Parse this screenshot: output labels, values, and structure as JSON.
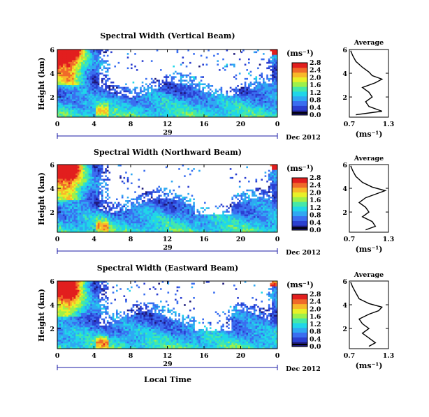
{
  "figure": {
    "xlabel": "Local Time",
    "date_label": "Dec 2012",
    "day_label": "29",
    "x_ticks": [
      "0",
      "4",
      "8",
      "12",
      "16",
      "20",
      "0"
    ],
    "y_ticks": [
      "6",
      "4",
      "2"
    ],
    "cbar_ticks": [
      "0.0",
      "0.4",
      "0.8",
      "1.2",
      "1.6",
      "2.0",
      "2.4",
      "2.8"
    ],
    "avg_y_ticks": [
      "6",
      "4",
      "2"
    ],
    "colormap": [
      "#1e1a7a",
      "#2b3fd0",
      "#3a6ef0",
      "#2fa8f2",
      "#20d6e8",
      "#45e8a8",
      "#9ef04a",
      "#e8f028",
      "#f8b82a",
      "#f06a2a",
      "#e21e1e"
    ]
  },
  "chart_data": [
    {
      "type": "heatmap",
      "title": "Spectral Width (Vertical Beam)",
      "xlabel": "",
      "ylabel": "Height (km)",
      "xlim": [
        0,
        24
      ],
      "ylim": [
        0.3,
        6
      ],
      "colorbar": {
        "label": "(ms⁻¹)",
        "range": [
          0.0,
          2.8
        ]
      },
      "average_profile": {
        "title": "Average",
        "xlabel": "(ms⁻¹)",
        "x_ticks": [
          "0.7",
          "1.3"
        ],
        "xlim": [
          0.7,
          1.3
        ],
        "ylim": [
          0.3,
          6
        ],
        "height_km": [
          0.5,
          0.8,
          1.2,
          1.6,
          2.0,
          2.4,
          2.8,
          3.2,
          3.5,
          3.8,
          4.1,
          4.5,
          5.0,
          5.5,
          5.9
        ],
        "width_ms": [
          0.8,
          1.2,
          1.0,
          0.95,
          1.05,
          1.0,
          0.9,
          1.1,
          1.2,
          1.05,
          1.0,
          0.9,
          0.8,
          0.75,
          0.72
        ]
      }
    },
    {
      "type": "heatmap",
      "title": "Spectral Width (Northward Beam)",
      "xlabel": "",
      "ylabel": "Height (km)",
      "xlim": [
        0,
        24
      ],
      "ylim": [
        0.3,
        6
      ],
      "colorbar": {
        "label": "(ms⁻¹)",
        "range": [
          0.0,
          2.8
        ]
      },
      "average_profile": {
        "title": "Average",
        "xlabel": "(ms⁻¹)",
        "x_ticks": [
          "0.7",
          "1.3"
        ],
        "xlim": [
          0.7,
          1.3
        ],
        "ylim": [
          0.3,
          6
        ],
        "height_km": [
          0.5,
          0.8,
          1.2,
          1.6,
          2.0,
          2.4,
          2.8,
          3.2,
          3.5,
          3.8,
          4.1,
          4.5,
          5.0,
          5.5,
          5.9
        ],
        "width_ms": [
          0.95,
          1.1,
          1.05,
          0.9,
          1.0,
          0.95,
          0.85,
          0.95,
          1.1,
          1.25,
          1.05,
          0.9,
          0.8,
          0.75,
          0.72
        ]
      }
    },
    {
      "type": "heatmap",
      "title": "Spectral Width (Eastward Beam)",
      "xlabel": "Local Time",
      "ylabel": "Height (km)",
      "xlim": [
        0,
        24
      ],
      "ylim": [
        0.3,
        6
      ],
      "colorbar": {
        "label": "(ms⁻¹)",
        "range": [
          0.0,
          2.8
        ]
      },
      "average_profile": {
        "title": "Average",
        "xlabel": "(ms⁻¹)",
        "x_ticks": [
          "0.7",
          "1.3"
        ],
        "xlim": [
          0.7,
          1.3
        ],
        "ylim": [
          0.3,
          6
        ],
        "height_km": [
          0.5,
          0.8,
          1.2,
          1.6,
          2.0,
          2.4,
          2.8,
          3.2,
          3.5,
          3.8,
          4.1,
          4.5,
          5.0,
          5.5,
          5.9
        ],
        "width_ms": [
          1.0,
          1.1,
          1.0,
          0.9,
          1.0,
          0.9,
          0.85,
          1.0,
          1.15,
          1.2,
          1.0,
          0.85,
          0.8,
          0.75,
          0.72
        ]
      }
    }
  ]
}
